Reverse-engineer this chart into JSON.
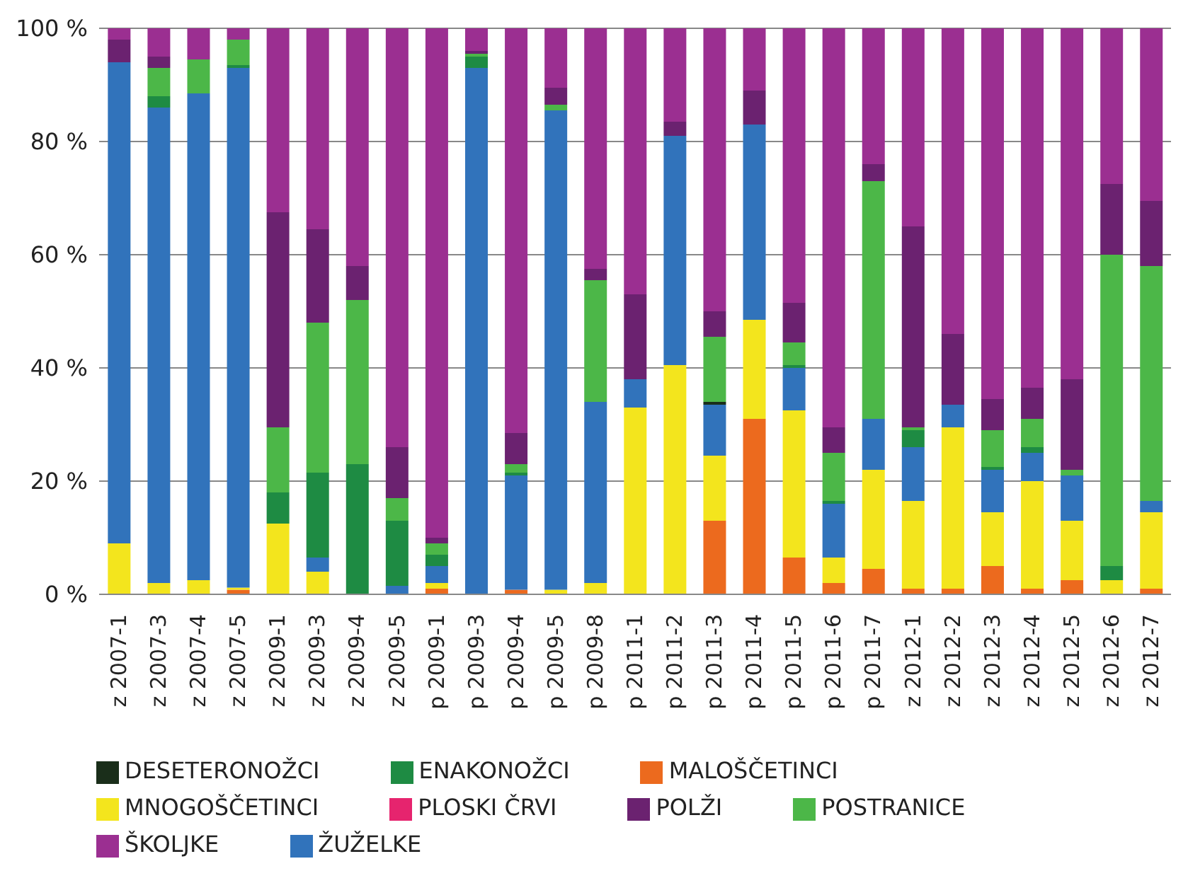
{
  "chart_data": {
    "type": "bar",
    "stacked": true,
    "categories": [
      "z 2007-1",
      "z 2007-3",
      "z 2007-4",
      "z 2007-5",
      "z 2009-1",
      "z 2009-3",
      "z 2009-4",
      "z 2009-5",
      "p 2009-1",
      "p 2009-3",
      "p 2009-4",
      "p 2009-5",
      "p 2009-8",
      "p 2011-1",
      "p 2011-2",
      "p 2011-3",
      "p 2011-4",
      "p 2011-5",
      "p 2011-6",
      "p 2011-7",
      "z 2012-1",
      "z 2012-2",
      "z 2012-3",
      "z 2012-4",
      "z 2012-5",
      "z 2012-6",
      "z 2012-7"
    ],
    "series": [
      {
        "name": "MALOŠČETINCI",
        "color": "#ec6a1e",
        "values": [
          0,
          0,
          0,
          0.8,
          0,
          0,
          0,
          0,
          1,
          0,
          0.8,
          0,
          0,
          0,
          0,
          13,
          31,
          6.5,
          2,
          4.5,
          1,
          1,
          5,
          1,
          2.5,
          0,
          1
        ]
      },
      {
        "name": "MNOGOŠČETINCI",
        "color": "#f3e51d",
        "values": [
          9,
          2,
          2.5,
          0.4,
          12.5,
          4,
          0,
          0,
          1,
          0,
          0,
          0.8,
          2,
          33,
          40.5,
          11.5,
          17.5,
          26,
          4.5,
          17.5,
          15.5,
          28.5,
          9.5,
          19,
          10.5,
          2.5,
          13.5
        ]
      },
      {
        "name": "ŽUŽELKE",
        "color": "#3173bb",
        "values": [
          85,
          84,
          86,
          91.8,
          0,
          2.5,
          0,
          1.5,
          3,
          93,
          20.2,
          84.7,
          32,
          5,
          40.5,
          9,
          34.5,
          7.5,
          9.5,
          9,
          9.5,
          4,
          7.5,
          5,
          8,
          0,
          2
        ]
      },
      {
        "name": "DESETERONOŽCI",
        "color": "#1a2e1a",
        "values": [
          0,
          0,
          0,
          0,
          0,
          0,
          0,
          0,
          0,
          0,
          0,
          0,
          0,
          0,
          0,
          0.5,
          0,
          0,
          0,
          0,
          0,
          0,
          0,
          0,
          0,
          0,
          0
        ]
      },
      {
        "name": "ENAKONOŽCI",
        "color": "#1e8b43",
        "values": [
          0,
          2,
          0,
          0.5,
          5.5,
          15,
          23,
          11.5,
          2,
          2,
          0.5,
          0,
          0,
          0,
          0,
          0,
          0,
          0.5,
          0.5,
          0,
          3,
          0,
          0.5,
          1,
          0,
          2.5,
          0
        ]
      },
      {
        "name": "POSTRANICE",
        "color": "#4cb748",
        "values": [
          0,
          5,
          6,
          4.5,
          11.5,
          26.5,
          29,
          4,
          2,
          0.5,
          1.5,
          1,
          21.5,
          0,
          0,
          11.5,
          0,
          4,
          8.5,
          42,
          0.5,
          0,
          6.5,
          5,
          1,
          55,
          41.5
        ]
      },
      {
        "name": "POLŽI",
        "color": "#6b2270",
        "values": [
          4,
          2,
          0,
          0,
          38,
          16.5,
          6,
          9,
          1,
          0.5,
          5.5,
          3,
          2,
          15,
          2.5,
          4.5,
          6,
          7,
          4.5,
          3,
          35.5,
          12.5,
          5.5,
          5.5,
          16,
          12.5,
          11.5
        ]
      },
      {
        "name": "ŠKOLJKE",
        "color": "#9b2f91",
        "values": [
          2,
          5,
          5.5,
          2,
          32.5,
          35.5,
          42,
          74,
          90,
          4,
          71.5,
          10.5,
          42.5,
          47,
          16.5,
          50,
          11,
          48.5,
          70.5,
          24,
          35,
          54,
          65.5,
          63.5,
          62,
          27.5,
          30.5
        ]
      },
      {
        "name": "PLOSKI ČRVI",
        "color": "#e6246e",
        "values": [
          0,
          0,
          0,
          0,
          0,
          0,
          0,
          0,
          0,
          0,
          0,
          0,
          0,
          0,
          0,
          0,
          0,
          0,
          0,
          0,
          0,
          0,
          0,
          0,
          0,
          0,
          0
        ]
      }
    ],
    "ylim": [
      0,
      100
    ],
    "yticks": [
      {
        "value": 0,
        "label": "0 %"
      },
      {
        "value": 20,
        "label": "20 %"
      },
      {
        "value": 40,
        "label": "40 %"
      },
      {
        "value": 60,
        "label": "60 %"
      },
      {
        "value": 80,
        "label": "80 %"
      },
      {
        "value": 100,
        "label": "100 %"
      }
    ],
    "grid": "y",
    "legend": "bottom"
  }
}
